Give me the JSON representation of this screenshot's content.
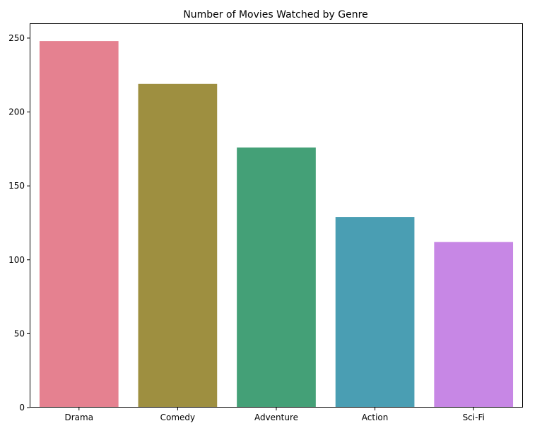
{
  "chart_data": {
    "type": "bar",
    "title": "Number of Movies Watched by Genre",
    "xlabel": "",
    "ylabel": "",
    "categories": [
      "Drama",
      "Comedy",
      "Adventure",
      "Action",
      "Sci-Fi"
    ],
    "values": [
      248,
      219,
      176,
      129,
      112
    ],
    "colors": [
      "#e58190",
      "#9e8f40",
      "#44a077",
      "#4a9eb3",
      "#c787e5"
    ],
    "ylim": [
      0,
      260
    ],
    "yticks": [
      0,
      50,
      100,
      150,
      200,
      250
    ],
    "ytick_labels": [
      "0",
      "50",
      "100",
      "150",
      "200",
      "250"
    ],
    "grid": false,
    "legend": "none"
  }
}
